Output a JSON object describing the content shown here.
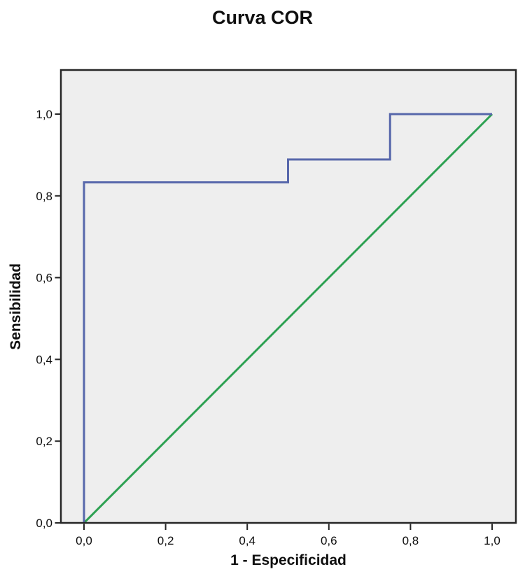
{
  "chart": {
    "title": "Curva COR",
    "xlabel": "1 - Especificidad",
    "ylabel": "Sensibilidad"
  },
  "chart_data": {
    "type": "line",
    "subtype": "roc-step-curve",
    "title": "Curva COR",
    "xlabel": "1 - Especificidad",
    "ylabel": "Sensibilidad",
    "xlim": [
      0.0,
      1.0
    ],
    "ylim": [
      0.0,
      1.0
    ],
    "grid": false,
    "legend": "none",
    "plot_bg": "#eeeeee",
    "frame_color": "#262626",
    "x_tick_values": [
      0.0,
      0.2,
      0.4,
      0.6,
      0.8,
      1.0
    ],
    "y_tick_values": [
      0.0,
      0.2,
      0.4,
      0.6,
      0.8,
      1.0
    ],
    "x_tick_labels": [
      "0,0",
      "0,2",
      "0,4",
      "0,6",
      "0,8",
      "1,0"
    ],
    "y_tick_labels": [
      "0,0",
      "0,2",
      "0,4",
      "0,6",
      "0,8",
      "1,0"
    ],
    "series": [
      {
        "name": "reference-diagonal",
        "color": "#2da152",
        "x": [
          0.0,
          1.0
        ],
        "y": [
          0.0,
          1.0
        ]
      },
      {
        "name": "roc-curve",
        "color": "#5767ab",
        "x": [
          0.0,
          0.0,
          0.5,
          0.5,
          0.75,
          0.75,
          1.0
        ],
        "y": [
          0.0,
          0.833,
          0.833,
          0.889,
          0.889,
          1.0,
          1.0
        ]
      }
    ]
  }
}
